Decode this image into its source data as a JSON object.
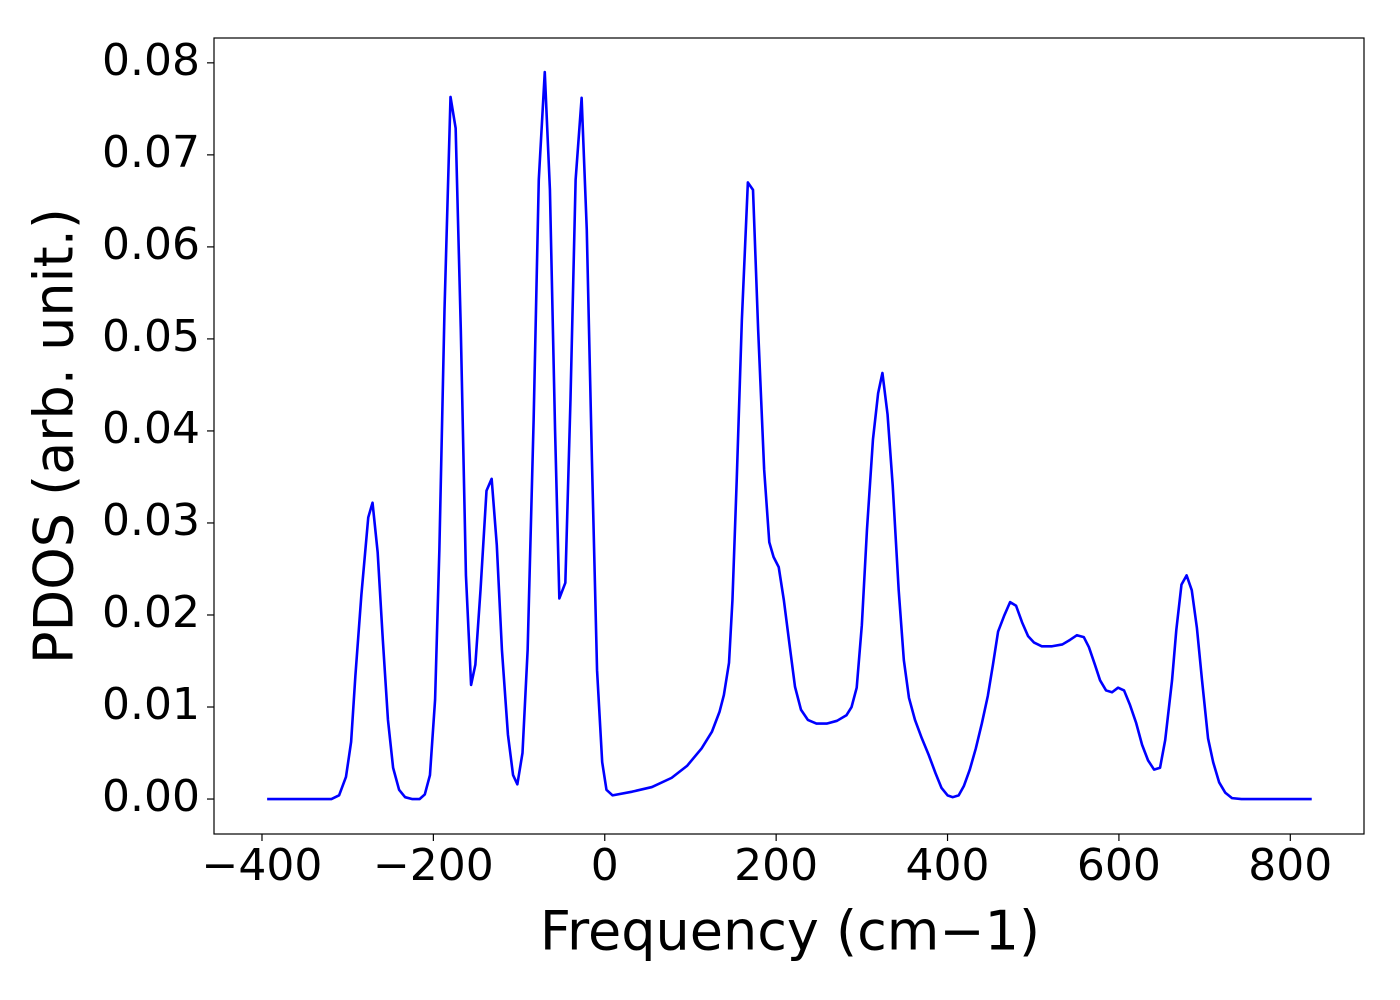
{
  "chart_data": {
    "type": "line",
    "xlabel": "Frequency (cm−1)",
    "ylabel": "PDOS (arb. unit.)",
    "xlim": [
      -456,
      886
    ],
    "ylim": [
      -0.0038,
      0.0827
    ],
    "xticks": [
      {
        "value": -400,
        "label": "−400"
      },
      {
        "value": -200,
        "label": "−200"
      },
      0,
      200,
      400,
      600,
      800
    ],
    "yticks": [
      {
        "value": 0,
        "label": "0.00"
      },
      {
        "value": 0.01,
        "label": "0.01"
      },
      {
        "value": 0.02,
        "label": "0.02"
      },
      {
        "value": 0.03,
        "label": "0.03"
      },
      {
        "value": 0.04,
        "label": "0.04"
      },
      {
        "value": 0.05,
        "label": "0.05"
      },
      {
        "value": 0.06,
        "label": "0.06"
      },
      {
        "value": 0.07,
        "label": "0.07"
      },
      {
        "value": 0.08,
        "label": "0.08"
      }
    ],
    "grid": false,
    "color": "#0000ff",
    "x": [
      -394,
      -319,
      -310,
      -302,
      -296,
      -291,
      -284,
      -276,
      -271,
      -265,
      -259,
      -253,
      -247,
      -240,
      -233,
      -225,
      -216,
      -210,
      -204,
      -198,
      -193,
      -187,
      -180,
      -174,
      -168,
      -162,
      -156,
      -151,
      -145,
      -138,
      -132,
      -126,
      -120,
      -113,
      -107,
      -102,
      -96,
      -90,
      -83,
      -77,
      -70,
      -64,
      -58,
      -53,
      -46,
      -40,
      -34,
      -27,
      -21,
      -15,
      -9,
      -3,
      2,
      9,
      32,
      55,
      78,
      96,
      113,
      125,
      134,
      139,
      145,
      149,
      154,
      160,
      167,
      173,
      179,
      186,
      192,
      197,
      203,
      209,
      216,
      222,
      229,
      237,
      247,
      259,
      271,
      282,
      288,
      294,
      300,
      306,
      313,
      319,
      324,
      330,
      336,
      343,
      349,
      355,
      362,
      370,
      378,
      386,
      393,
      400,
      406,
      413,
      419,
      426,
      433,
      440,
      447,
      453,
      459,
      466,
      473,
      480,
      487,
      494,
      501,
      510,
      522,
      534,
      543,
      551,
      559,
      565,
      572,
      578,
      585,
      592,
      599,
      606,
      613,
      620,
      627,
      634,
      641,
      648,
      654,
      662,
      667,
      673,
      679,
      685,
      691,
      697,
      704,
      710,
      717,
      724,
      732,
      743,
      825
    ],
    "values": [
      0,
      0,
      0.0004,
      0.0024,
      0.0062,
      0.0134,
      0.0222,
      0.0306,
      0.0322,
      0.0268,
      0.0173,
      0.0086,
      0.0034,
      0.001,
      0.0002,
      0,
      0,
      0.0005,
      0.0026,
      0.0108,
      0.0271,
      0.0532,
      0.0763,
      0.0729,
      0.051,
      0.0243,
      0.0124,
      0.0146,
      0.0227,
      0.0335,
      0.0348,
      0.0276,
      0.0162,
      0.007,
      0.0026,
      0.0016,
      0.005,
      0.0162,
      0.0412,
      0.0673,
      0.079,
      0.0662,
      0.0401,
      0.0218,
      0.0235,
      0.0434,
      0.0673,
      0.0762,
      0.0619,
      0.0369,
      0.014,
      0.004,
      0.001,
      0.0004,
      0.0008,
      0.0013,
      0.0023,
      0.0036,
      0.0055,
      0.0073,
      0.0095,
      0.0113,
      0.0148,
      0.0216,
      0.0347,
      0.0521,
      0.067,
      0.0662,
      0.051,
      0.0358,
      0.0279,
      0.0263,
      0.0252,
      0.0216,
      0.0165,
      0.0122,
      0.0097,
      0.0086,
      0.0082,
      0.0082,
      0.0085,
      0.0091,
      0.01,
      0.0121,
      0.0189,
      0.0293,
      0.0391,
      0.0441,
      0.0463,
      0.0418,
      0.0341,
      0.0227,
      0.0151,
      0.011,
      0.0086,
      0.0066,
      0.0048,
      0.0028,
      0.0012,
      0.0004,
      0.0002,
      0.0004,
      0.0014,
      0.0032,
      0.0055,
      0.0082,
      0.0112,
      0.0146,
      0.0182,
      0.0199,
      0.0214,
      0.021,
      0.0192,
      0.0177,
      0.017,
      0.0166,
      0.0166,
      0.0168,
      0.0173,
      0.0178,
      0.0176,
      0.0165,
      0.0146,
      0.0129,
      0.0118,
      0.0116,
      0.0121,
      0.0118,
      0.0102,
      0.0083,
      0.0059,
      0.0042,
      0.0032,
      0.0034,
      0.0064,
      0.0129,
      0.0184,
      0.0233,
      0.0243,
      0.0227,
      0.0186,
      0.0129,
      0.0066,
      0.004,
      0.0018,
      0.0007,
      0.0001,
      0,
      0
    ]
  }
}
